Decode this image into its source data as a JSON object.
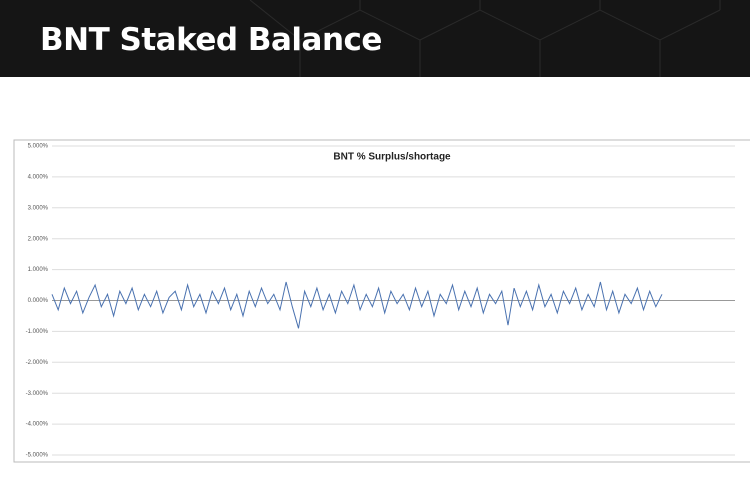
{
  "header": {
    "title": "BNT Staked Balance"
  },
  "chart_data": {
    "type": "line",
    "title": "BNT % Surplus/shortage",
    "series": [
      {
        "name": "BNT % Surplus/shortage",
        "color": "#4a72b0",
        "values": [
          0.2,
          -0.3,
          0.4,
          -0.1,
          0.3,
          -0.4,
          0.1,
          0.5,
          -0.2,
          0.2,
          -0.5,
          0.3,
          -0.1,
          0.4,
          -0.3,
          0.2,
          -0.2,
          0.3,
          -0.4,
          0.1,
          0.3,
          -0.3,
          0.5,
          -0.2,
          0.2,
          -0.4,
          0.3,
          -0.1,
          0.4,
          -0.3,
          0.2,
          -0.5,
          0.3,
          -0.2,
          0.4,
          -0.1,
          0.2,
          -0.3,
          0.6,
          -0.2,
          -0.9,
          0.3,
          -0.2,
          0.4,
          -0.3,
          0.2,
          -0.4,
          0.3,
          -0.1,
          0.5,
          -0.3,
          0.2,
          -0.2,
          0.4,
          -0.4,
          0.3,
          -0.1,
          0.2,
          -0.3,
          0.4,
          -0.2,
          0.3,
          -0.5,
          0.2,
          -0.1,
          0.5,
          -0.3,
          0.3,
          -0.2,
          0.4,
          -0.4,
          0.2,
          -0.1,
          0.3,
          -0.8,
          0.4,
          -0.2,
          0.3,
          -0.3,
          0.5,
          -0.2,
          0.2,
          -0.4,
          0.3,
          -0.1,
          0.4,
          -0.3,
          0.2,
          -0.2,
          0.6,
          -0.3,
          0.3,
          -0.4,
          0.2,
          -0.1,
          0.4,
          -0.3,
          0.3,
          -0.2,
          0.2
        ]
      }
    ],
    "ylim": [
      -5,
      5
    ],
    "yticks": [
      {
        "value": 5,
        "label": "5.000%"
      },
      {
        "value": 4,
        "label": "4.000%"
      },
      {
        "value": 3,
        "label": "3.000%"
      },
      {
        "value": 2,
        "label": "2.000%"
      },
      {
        "value": 1,
        "label": "1.000%"
      },
      {
        "value": 0,
        "label": "0.000%"
      },
      {
        "value": -1,
        "label": "-1.000%"
      },
      {
        "value": -2,
        "label": "-2.000%"
      },
      {
        "value": -3,
        "label": "-3.000%"
      },
      {
        "value": -4,
        "label": "-4.000%"
      },
      {
        "value": -5,
        "label": "-5.000%"
      }
    ],
    "grid": true
  }
}
